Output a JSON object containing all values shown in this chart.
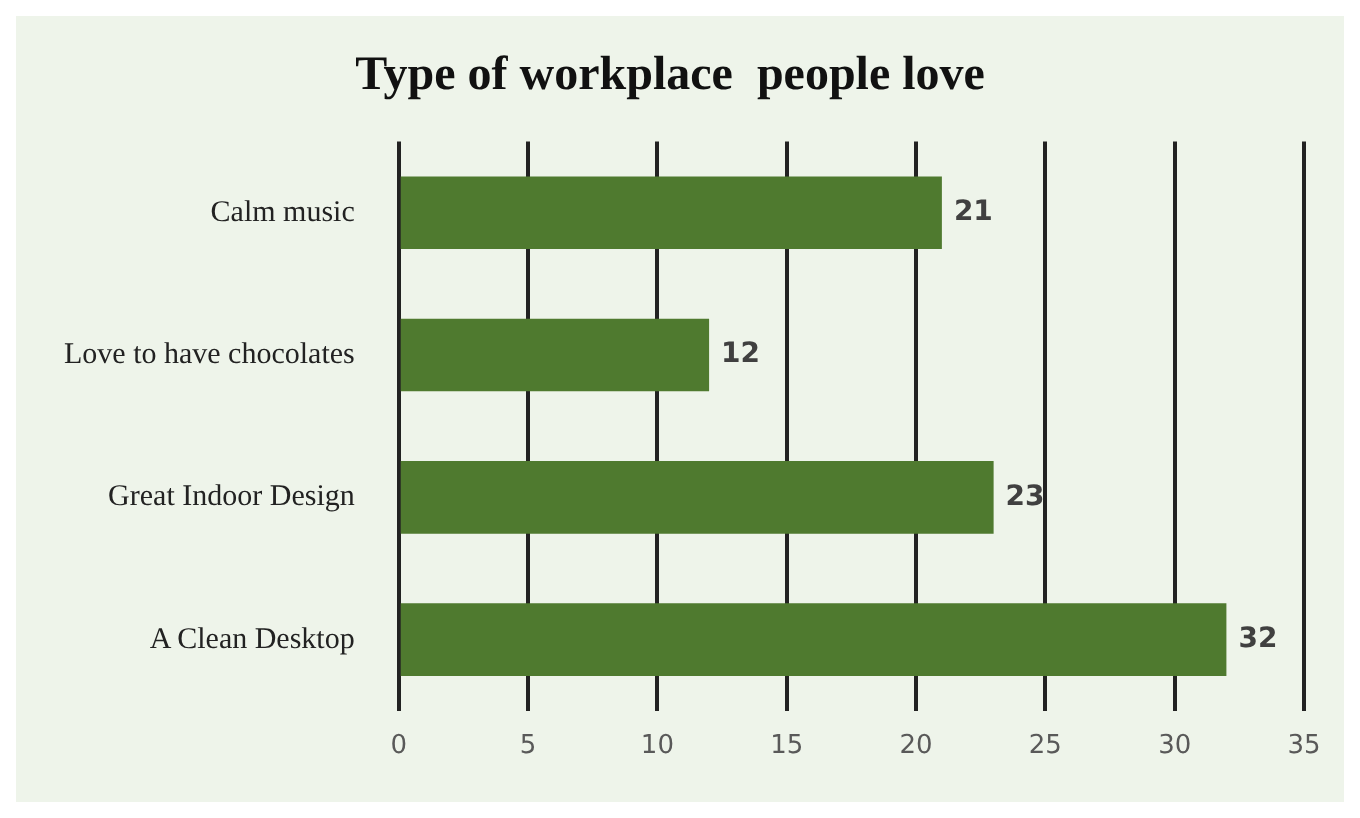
{
  "chart_data": {
    "type": "bar",
    "orientation": "horizontal",
    "title": "Type of workplace  people love",
    "categories": [
      "Calm music",
      "Love to have chocolates",
      "Great Indoor Design",
      "A Clean Desktop"
    ],
    "values": [
      21,
      12,
      23,
      32
    ],
    "color": "#4f7a2f",
    "xlim": [
      0,
      35
    ],
    "xticks": [
      0,
      5,
      10,
      15,
      20,
      25,
      30,
      35
    ],
    "grid": "x",
    "data_labels": true,
    "legend": false
  }
}
